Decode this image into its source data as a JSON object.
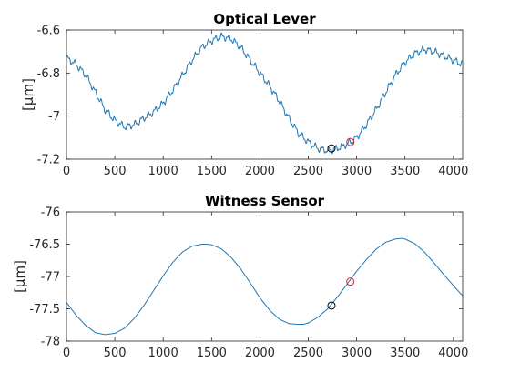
{
  "chart_data": [
    {
      "type": "line",
      "title": "Optical Lever",
      "ylabel": "[μm]",
      "xlim": [
        0,
        4096
      ],
      "ylim": [
        -7.2,
        -6.6
      ],
      "xticks": [
        0,
        500,
        1000,
        1500,
        2000,
        2500,
        3000,
        3500,
        4000
      ],
      "yticks": [
        -6.6,
        -6.8,
        -7,
        -7.2
      ],
      "ytick_labels": [
        "-6.6",
        "-6.8",
        "-7",
        "-7.2"
      ],
      "line_color": "#1f77b4",
      "series": [
        {
          "x": [
            0,
            100,
            200,
            300,
            400,
            500,
            600,
            700,
            800,
            900,
            1000,
            1100,
            1200,
            1300,
            1400,
            1500,
            1600,
            1700,
            1800,
            1900,
            2000,
            2100,
            2200,
            2300,
            2400,
            2500,
            2600,
            2700,
            2800,
            2900,
            3000,
            3100,
            3200,
            3300,
            3400,
            3500,
            3600,
            3700,
            3800,
            3900,
            4000,
            4096
          ],
          "values": [
            -6.73,
            -6.76,
            -6.81,
            -6.89,
            -6.97,
            -7.02,
            -7.05,
            -7.04,
            -7.01,
            -6.98,
            -6.94,
            -6.88,
            -6.81,
            -6.74,
            -6.68,
            -6.65,
            -6.63,
            -6.64,
            -6.68,
            -6.74,
            -6.8,
            -6.86,
            -6.93,
            -7.01,
            -7.08,
            -7.12,
            -7.15,
            -7.16,
            -7.15,
            -7.13,
            -7.1,
            -7.04,
            -6.97,
            -6.89,
            -6.81,
            -6.75,
            -6.71,
            -6.69,
            -6.7,
            -6.72,
            -6.74,
            -6.76
          ],
          "ripple_amplitude": 0.012
        }
      ],
      "markers": [
        {
          "x": 2740,
          "y": -7.15,
          "color": "#000000"
        },
        {
          "x": 2935,
          "y": -7.12,
          "color": "#d62728"
        }
      ]
    },
    {
      "type": "line",
      "title": "Witness Sensor",
      "ylabel": "[μm]",
      "xlim": [
        0,
        4096
      ],
      "ylim": [
        -78,
        -76
      ],
      "xticks": [
        0,
        500,
        1000,
        1500,
        2000,
        2500,
        3000,
        3500,
        4000
      ],
      "yticks": [
        -76,
        -76.5,
        -77,
        -77.5,
        -78
      ],
      "ytick_labels": [
        "-76",
        "-76.5",
        "-77",
        "-77.5",
        "-78"
      ],
      "line_color": "#1f77b4",
      "series": [
        {
          "x": [
            0,
            100,
            200,
            300,
            400,
            500,
            600,
            700,
            800,
            900,
            1000,
            1100,
            1200,
            1300,
            1400,
            1450,
            1500,
            1600,
            1700,
            1800,
            1900,
            2000,
            2100,
            2200,
            2300,
            2400,
            2450,
            2500,
            2600,
            2700,
            2800,
            2900,
            3000,
            3100,
            3200,
            3300,
            3400,
            3470,
            3500,
            3600,
            3700,
            3800,
            3900,
            4000,
            4096
          ],
          "values": [
            -77.4,
            -77.6,
            -77.76,
            -77.87,
            -77.9,
            -77.88,
            -77.8,
            -77.65,
            -77.45,
            -77.22,
            -76.99,
            -76.78,
            -76.62,
            -76.53,
            -76.5,
            -76.5,
            -76.51,
            -76.57,
            -76.7,
            -76.88,
            -77.1,
            -77.33,
            -77.52,
            -77.66,
            -77.73,
            -77.74,
            -77.74,
            -77.72,
            -77.63,
            -77.5,
            -77.32,
            -77.12,
            -76.92,
            -76.74,
            -76.58,
            -76.47,
            -76.42,
            -76.41,
            -76.42,
            -76.49,
            -76.62,
            -76.79,
            -76.97,
            -77.14,
            -77.3
          ],
          "ripple_amplitude": 0
        }
      ],
      "markers": [
        {
          "x": 2740,
          "y": -77.45,
          "color": "#000000"
        },
        {
          "x": 2935,
          "y": -77.08,
          "color": "#d62728"
        }
      ]
    }
  ]
}
